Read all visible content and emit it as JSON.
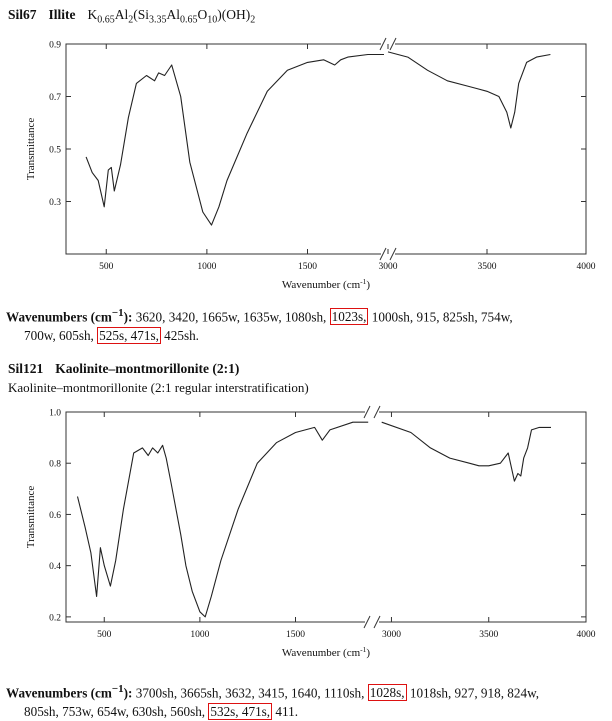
{
  "sections": [
    {
      "id": "Sil67",
      "title": "Illite",
      "formula_parts": [
        "K",
        "0.65",
        "Al",
        "2",
        "(Si",
        "3.35",
        "Al",
        "0.65",
        "O",
        "10",
        ")(OH)",
        "2"
      ],
      "subtitle": "",
      "wavenumbers_label": "Wavenumbers (cm",
      "wavenumbers_sup": "−1",
      "wavenumbers_close": "):",
      "line1": [
        {
          "t": " 3620, 3420, 1665w, 1635w, 1080sh, ",
          "hl": false
        },
        {
          "t": "1023s,",
          "hl": true
        },
        {
          "t": " 1000sh, 915, 825sh, 754w,",
          "hl": false
        }
      ],
      "line2": [
        {
          "t": "700w, 605sh, ",
          "hl": false
        },
        {
          "t": "525s, 471s,",
          "hl": true
        },
        {
          "t": " 425sh.",
          "hl": false
        }
      ]
    },
    {
      "id": "Sil121",
      "title": "Kaolinite–montmorillonite (2:1)",
      "formula_parts": [],
      "subtitle": "Kaolinite–montmorillonite (2:1 regular interstratification)",
      "wavenumbers_label": "Wavenumbers (cm",
      "wavenumbers_sup": "−1",
      "wavenumbers_close": "):",
      "line1": [
        {
          "t": " 3700sh, 3665sh, 3632, 3415, 1640, 1110sh, ",
          "hl": false
        },
        {
          "t": "1028s,",
          "hl": true
        },
        {
          "t": " 1018sh, 927, 918, 824w,",
          "hl": false
        }
      ],
      "line2": [
        {
          "t": "805sh, 753w, 654w, 630sh, 560sh, ",
          "hl": false
        },
        {
          "t": "532s, 471s,",
          "hl": true
        },
        {
          "t": " 411.",
          "hl": false
        }
      ]
    }
  ],
  "chart_data": [
    {
      "type": "line",
      "title": "Sil67 Illite",
      "xlabel": "Wavenumber (cm",
      "xlabel_sup": "-1",
      "xlabel_close": ")",
      "ylabel": "Transmittance",
      "x_break": 1900,
      "x_segments": [
        [
          300,
          1900,
          "500",
          "1000",
          "1500"
        ],
        [
          3000,
          4000,
          "3000",
          "3500",
          "4000"
        ]
      ],
      "x_ticks": [
        500,
        1000,
        1500,
        3000,
        3500,
        4000
      ],
      "x_ticklabels": [
        "500",
        "1000",
        "1500",
        "3000",
        "3500",
        "4000"
      ],
      "ylim": [
        0.1,
        0.9
      ],
      "y_ticks": [
        0.3,
        0.5,
        0.7,
        0.9
      ],
      "y_ticklabels": [
        "0.3",
        "0.5",
        "0.7",
        "0.9"
      ],
      "series": [
        {
          "name": "Sil67",
          "x": [
            400,
            430,
            460,
            490,
            510,
            525,
            540,
            571,
            610,
            650,
            700,
            740,
            760,
            790,
            825,
            870,
            915,
            980,
            1023,
            1060,
            1100,
            1200,
            1300,
            1400,
            1500,
            1580,
            1635,
            1665,
            1700,
            1800,
            1880,
            3000,
            3100,
            3200,
            3300,
            3400,
            3450,
            3500,
            3560,
            3600,
            3620,
            3640,
            3660,
            3700,
            3750,
            3820
          ],
          "y": [
            0.47,
            0.41,
            0.38,
            0.28,
            0.42,
            0.43,
            0.34,
            0.44,
            0.62,
            0.75,
            0.78,
            0.76,
            0.79,
            0.78,
            0.82,
            0.7,
            0.45,
            0.26,
            0.21,
            0.28,
            0.38,
            0.56,
            0.72,
            0.8,
            0.83,
            0.84,
            0.82,
            0.84,
            0.85,
            0.86,
            0.86,
            0.87,
            0.85,
            0.8,
            0.76,
            0.74,
            0.73,
            0.72,
            0.7,
            0.64,
            0.58,
            0.64,
            0.75,
            0.83,
            0.85,
            0.86
          ]
        }
      ]
    },
    {
      "type": "line",
      "title": "Sil121 Kaolinite–montmorillonite (2:1)",
      "xlabel": "Wavenumber (cm",
      "xlabel_sup": "-1",
      "xlabel_close": ")",
      "ylabel": "Transmittance",
      "x_break": 1900,
      "x_segments": [
        [
          300,
          1900
        ],
        [
          2900,
          4000
        ]
      ],
      "x_ticks": [
        500,
        1000,
        1500,
        3000,
        3500,
        4000
      ],
      "x_ticklabels": [
        "500",
        "1000",
        "1500",
        "3000",
        "3500",
        "4000"
      ],
      "ylim": [
        0.18,
        1.0
      ],
      "y_ticks": [
        0.2,
        0.4,
        0.6,
        0.8,
        1.0
      ],
      "y_ticklabels": [
        "0.2",
        "0.4",
        "0.6",
        "0.8",
        "1.0"
      ],
      "series": [
        {
          "name": "Sil121",
          "x": [
            360,
            400,
            430,
            460,
            480,
            500,
            532,
            560,
            600,
            654,
            700,
            730,
            753,
            780,
            805,
            824,
            850,
            900,
            927,
            960,
            1000,
            1028,
            1060,
            1110,
            1200,
            1300,
            1400,
            1500,
            1600,
            1640,
            1680,
            1800,
            1880,
            2950,
            3100,
            3200,
            3300,
            3400,
            3450,
            3500,
            3560,
            3600,
            3632,
            3650,
            3665,
            3680,
            3700,
            3720,
            3760,
            3820
          ],
          "y": [
            0.67,
            0.55,
            0.45,
            0.28,
            0.47,
            0.4,
            0.32,
            0.42,
            0.62,
            0.84,
            0.86,
            0.83,
            0.86,
            0.84,
            0.87,
            0.82,
            0.72,
            0.52,
            0.4,
            0.3,
            0.22,
            0.2,
            0.28,
            0.42,
            0.62,
            0.8,
            0.88,
            0.92,
            0.94,
            0.89,
            0.93,
            0.96,
            0.96,
            0.96,
            0.92,
            0.86,
            0.82,
            0.8,
            0.79,
            0.79,
            0.8,
            0.84,
            0.73,
            0.76,
            0.75,
            0.82,
            0.86,
            0.93,
            0.94,
            0.94
          ]
        }
      ]
    }
  ]
}
